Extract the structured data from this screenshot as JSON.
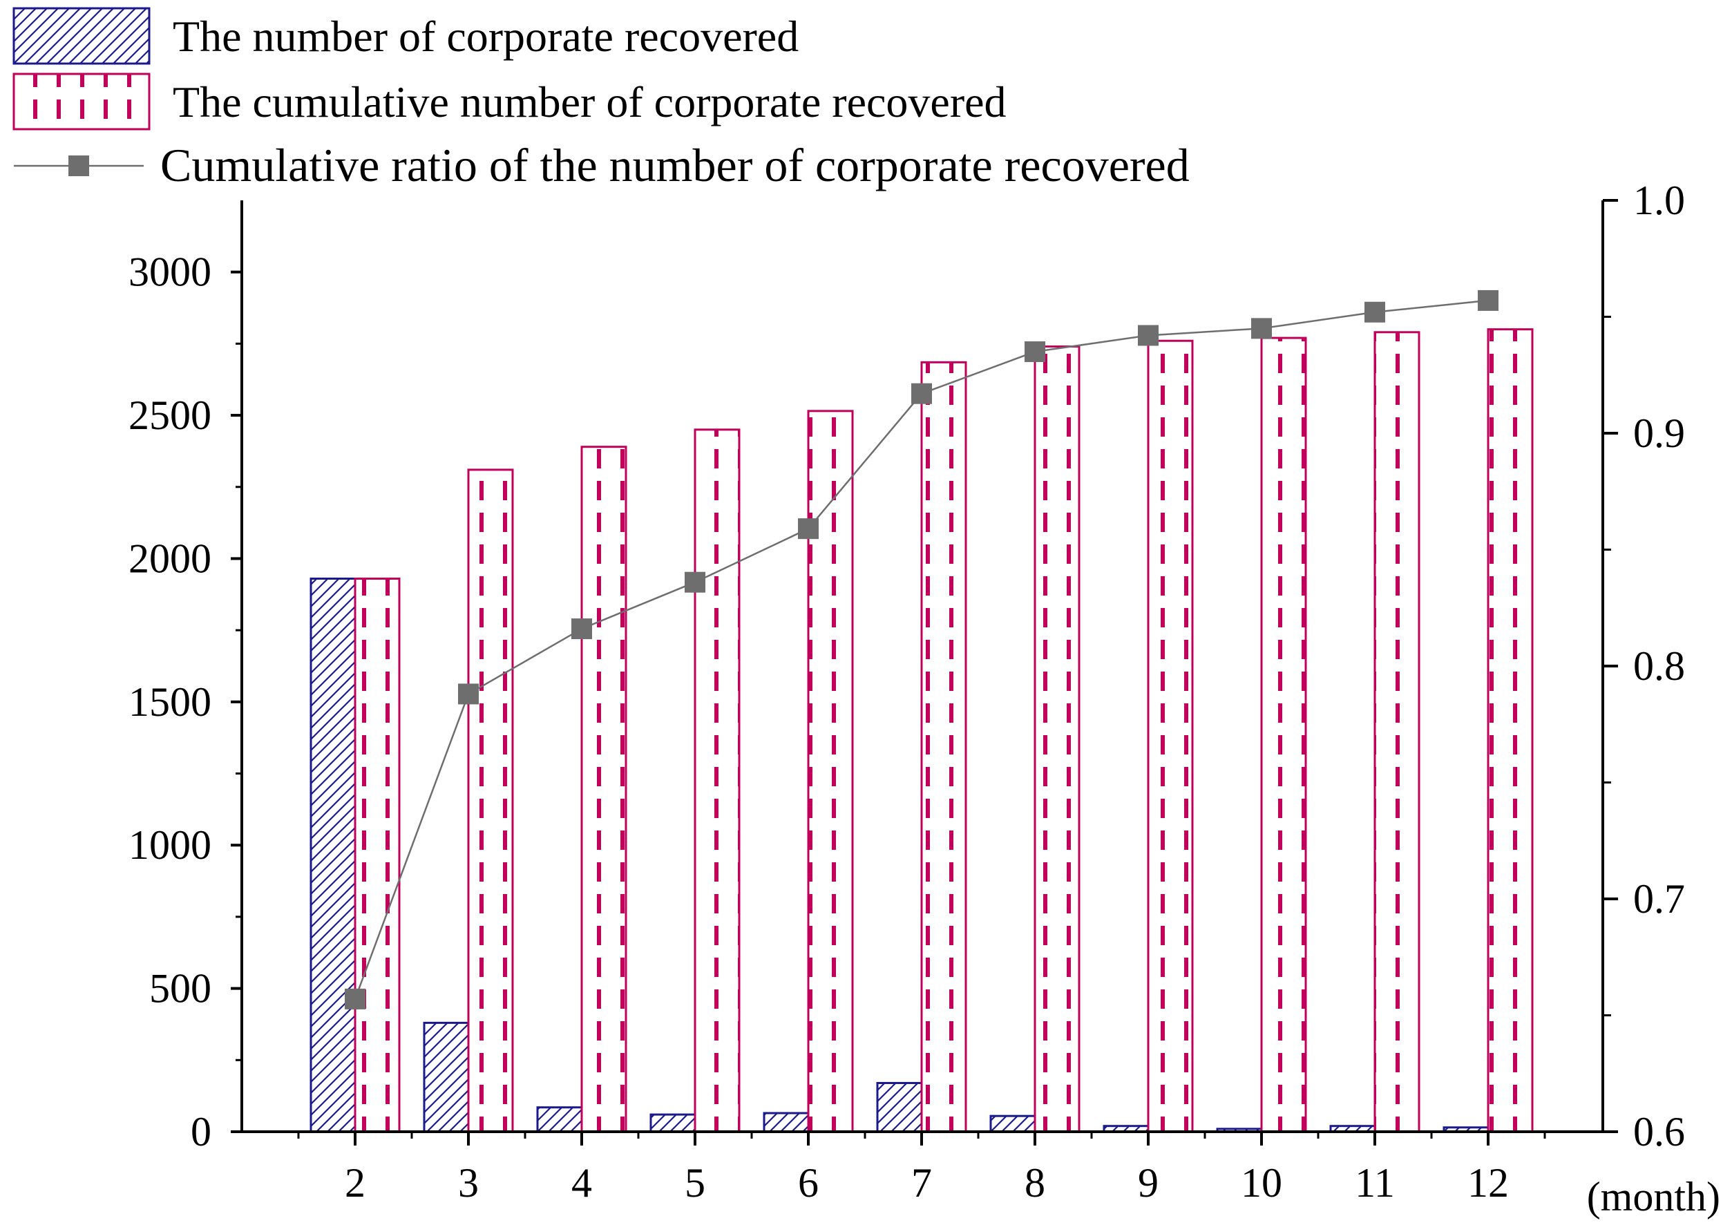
{
  "chart_data": {
    "type": "bar",
    "categories": [
      "2",
      "3",
      "4",
      "5",
      "6",
      "7",
      "8",
      "9",
      "10",
      "11",
      "12"
    ],
    "x_unit_label": "(month)",
    "series": [
      {
        "name": "The number of corporate recovered",
        "type": "bar",
        "axis": "left",
        "pattern": "diagonal-hatch",
        "color": "#1a1a8c",
        "values": [
          1930,
          380,
          85,
          60,
          65,
          170,
          55,
          20,
          10,
          20,
          15
        ]
      },
      {
        "name": "The cumulative number of corporate recovered",
        "type": "bar",
        "axis": "left",
        "pattern": "dashed-vertical",
        "color": "#c0005a",
        "values": [
          1930,
          2310,
          2390,
          2450,
          2515,
          2685,
          2740,
          2760,
          2770,
          2790,
          2800
        ]
      },
      {
        "name": "Cumulative ratio of the number of corporate recovered",
        "type": "line",
        "axis": "right",
        "marker": "square",
        "color": "#6e6e6e",
        "values": [
          0.657,
          0.788,
          0.816,
          0.836,
          0.859,
          0.917,
          0.935,
          0.942,
          0.945,
          0.952,
          0.957
        ]
      }
    ],
    "left_axis": {
      "ylim": [
        0,
        3250
      ],
      "ticks": [
        "0",
        "500",
        "1000",
        "1500",
        "2000",
        "2500",
        "3000"
      ],
      "tick_values": [
        0,
        500,
        1000,
        1500,
        2000,
        2500,
        3000
      ]
    },
    "right_axis": {
      "ylim": [
        0.6,
        1.0
      ],
      "ticks": [
        "0.6",
        "0.7",
        "0.8",
        "0.9",
        "1.0"
      ],
      "tick_values": [
        0.6,
        0.7,
        0.8,
        0.9,
        1.0
      ]
    },
    "legend_position": "top-left",
    "grid": false
  }
}
